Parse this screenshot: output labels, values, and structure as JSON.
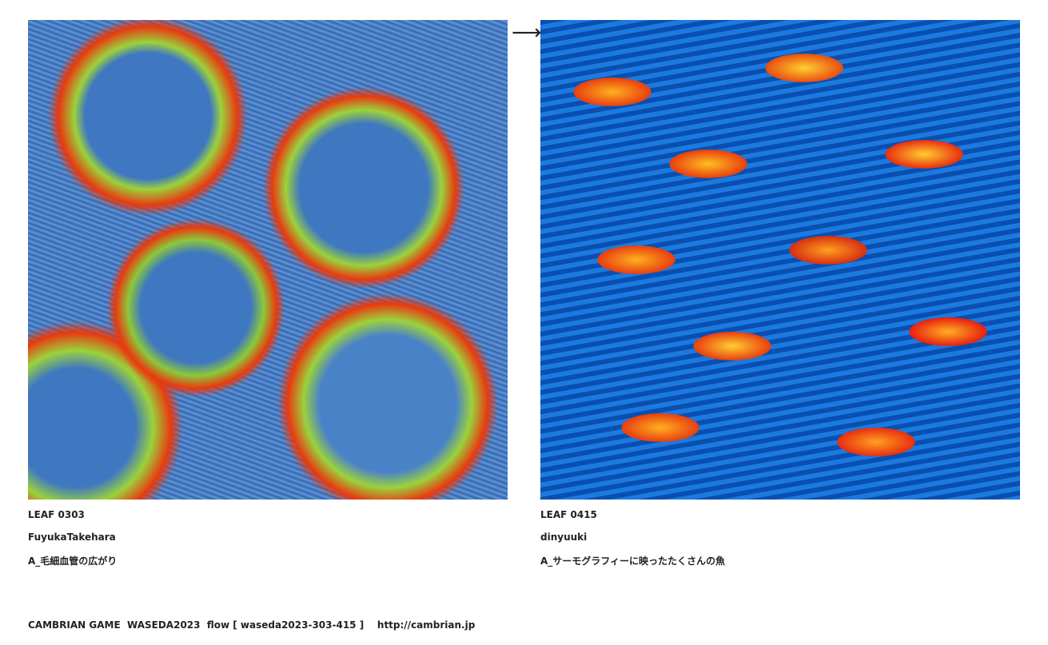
{
  "left": {
    "leaf": "LEAF 0303",
    "author": "FuyukaTakehara",
    "title": "A_毛細血管の広がり"
  },
  "right": {
    "leaf": "LEAF 0415",
    "author": "dinyuuki",
    "title": "A_サーモグラフィーに映ったたくさんの魚"
  },
  "arrow": "⟶",
  "footer": "CAMBRIAN GAME  WASEDA2023  flow [ waseda2023-303-415 ]    http://cambrian.jp"
}
